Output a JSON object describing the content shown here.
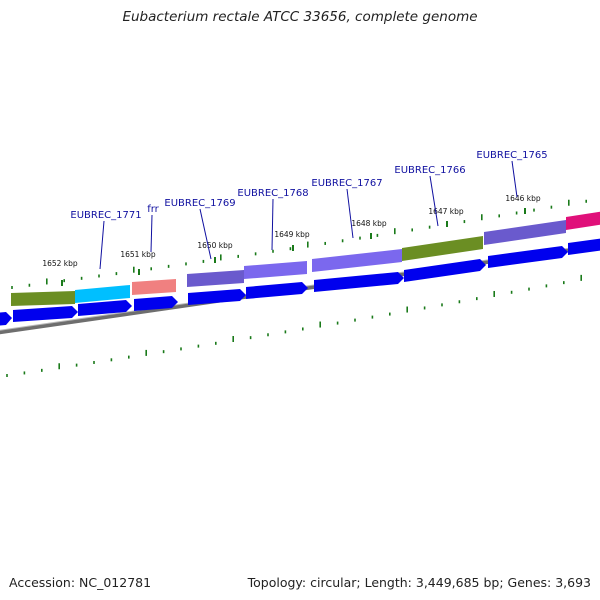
{
  "title": "Eubacterium rectale ATCC 33656, complete genome",
  "footer": {
    "accession": "Accession: NC_012781",
    "topology": "Topology: circular; Length: 3,449,685 bp; Genes: 3,693"
  },
  "colors": {
    "gene_label": "#1010a0",
    "tick": "#1a7a1a",
    "backbone": "#8a8a8a",
    "cds_arrow": "#0000ee"
  },
  "ticks": [
    {
      "label": "1652 kbp"
    },
    {
      "label": "1651 kbp"
    },
    {
      "label": "1650 kbp"
    },
    {
      "label": "1649 kbp"
    },
    {
      "label": "1648 kbp"
    },
    {
      "label": "1647 kbp"
    },
    {
      "label": "1646 kbp"
    }
  ],
  "genes": [
    {
      "label": "EUBREC_1771"
    },
    {
      "label": "frr"
    },
    {
      "label": "EUBREC_1769"
    },
    {
      "label": "EUBREC_1768"
    },
    {
      "label": "EUBREC_1767"
    },
    {
      "label": "EUBREC_1766"
    },
    {
      "label": "EUBREC_1765"
    }
  ],
  "feature_colors": [
    "#6b8e23",
    "#00bfff",
    "#f08080",
    "#6a5acd",
    "#7b68ee",
    "#7b68ee",
    "#6b8e23",
    "#6a5acd",
    "#e0107a"
  ]
}
